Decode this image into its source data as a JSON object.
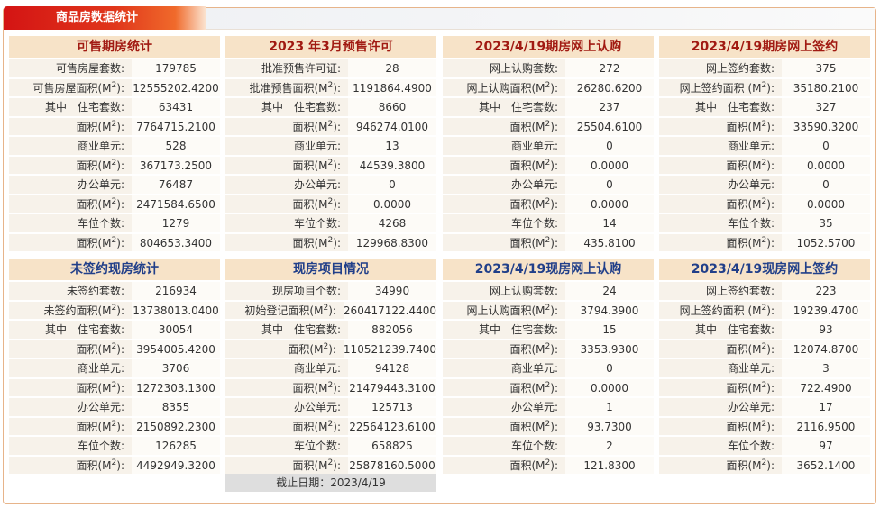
{
  "title": "商品房数据统计",
  "unit_sup": "2",
  "panels": [
    {
      "id": "p1",
      "title": "可售期房统计",
      "tone": "red",
      "rows": [
        {
          "label": "可售房屋套数:",
          "value": "179785"
        },
        {
          "label": "可售房屋面积(M",
          "sup": true,
          "value": "12555202.4200"
        },
        {
          "label": "其中　住宅套数:",
          "value": "63431"
        },
        {
          "label": "面积(M",
          "sup": true,
          "value": "7764715.2100"
        },
        {
          "label": "商业单元:",
          "value": "528"
        },
        {
          "label": "面积(M",
          "sup": true,
          "value": "367173.2500"
        },
        {
          "label": "办公单元:",
          "value": "76487"
        },
        {
          "label": "面积(M",
          "sup": true,
          "value": "2471584.6500"
        },
        {
          "label": "车位个数:",
          "value": "1279"
        },
        {
          "label": "面积(M",
          "sup": true,
          "value": "804653.3400"
        }
      ]
    },
    {
      "id": "p2",
      "title": "2023 年3月预售许可",
      "tone": "red",
      "rows": [
        {
          "label": "批准预售许可证:",
          "value": "28"
        },
        {
          "label": "批准预售面积(M",
          "sup": true,
          "value": "1191864.4900"
        },
        {
          "label": "其中　住宅套数:",
          "value": "8660"
        },
        {
          "label": "面积(M",
          "sup": true,
          "value": "946274.0100"
        },
        {
          "label": "商业单元:",
          "value": "13"
        },
        {
          "label": "面积(M",
          "sup": true,
          "value": "44539.3800"
        },
        {
          "label": "办公单元:",
          "value": "0"
        },
        {
          "label": "面积(M",
          "sup": true,
          "value": "0.0000"
        },
        {
          "label": "车位个数:",
          "value": "4268"
        },
        {
          "label": "面积(M",
          "sup": true,
          "value": "129968.8300"
        }
      ]
    },
    {
      "id": "p3",
      "title": "2023/4/19期房网上认购",
      "tone": "red",
      "rows": [
        {
          "label": "网上认购套数:",
          "value": "272"
        },
        {
          "label": "网上认购面积(M",
          "sup": true,
          "value": "26280.6200"
        },
        {
          "label": "其中　住宅套数:",
          "value": "237"
        },
        {
          "label": "面积(M",
          "sup": true,
          "value": "25504.6100"
        },
        {
          "label": "商业单元:",
          "value": "0"
        },
        {
          "label": "面积(M",
          "sup": true,
          "value": "0.0000"
        },
        {
          "label": "办公单元:",
          "value": "0"
        },
        {
          "label": "面积(M",
          "sup": true,
          "value": "0.0000"
        },
        {
          "label": "车位个数:",
          "value": "14"
        },
        {
          "label": "面积(M",
          "sup": true,
          "value": "435.8100"
        }
      ]
    },
    {
      "id": "p4",
      "title": "2023/4/19期房网上签约",
      "tone": "red",
      "rows": [
        {
          "label": "网上签约套数:",
          "value": "375"
        },
        {
          "label": "网上签约面积 (M",
          "sup": true,
          "value": "35180.2100"
        },
        {
          "label": "其中　住宅套数:",
          "value": "327"
        },
        {
          "label": "面积(M",
          "sup": true,
          "value": "33590.3200"
        },
        {
          "label": "商业单元:",
          "value": "0"
        },
        {
          "label": "面积(M",
          "sup": true,
          "value": "0.0000"
        },
        {
          "label": "办公单元:",
          "value": "0"
        },
        {
          "label": "面积(M",
          "sup": true,
          "value": "0.0000"
        },
        {
          "label": "车位个数:",
          "value": "35"
        },
        {
          "label": "面积(M",
          "sup": true,
          "value": "1052.5700"
        }
      ]
    },
    {
      "id": "p5",
      "title": "未签约现房统计",
      "tone": "blue",
      "rows": [
        {
          "label": "未签约套数:",
          "value": "216934"
        },
        {
          "label": "未签约面积(M",
          "sup": true,
          "value": "13738013.0400"
        },
        {
          "label": "其中　住宅套数:",
          "value": "30054"
        },
        {
          "label": "面积(M",
          "sup": true,
          "value": "3954005.4200"
        },
        {
          "label": "商业单元:",
          "value": "3706"
        },
        {
          "label": "面积(M",
          "sup": true,
          "value": "1272303.1300"
        },
        {
          "label": "办公单元:",
          "value": "8355"
        },
        {
          "label": "面积(M",
          "sup": true,
          "value": "2150892.2300"
        },
        {
          "label": "车位个数:",
          "value": "126285"
        },
        {
          "label": "面积(M",
          "sup": true,
          "value": "4492949.3200"
        }
      ]
    },
    {
      "id": "p6",
      "title": "现房项目情况",
      "tone": "blue",
      "rows": [
        {
          "label": "现房项目个数:",
          "value": "34990"
        },
        {
          "label": "初始登记面积(M",
          "sup": true,
          "value": "260417122.4400"
        },
        {
          "label": "其中　住宅套数:",
          "value": "882056"
        },
        {
          "label": "面积(M",
          "sup": true,
          "value": "110521239.7400"
        },
        {
          "label": "商业单元:",
          "value": "94128"
        },
        {
          "label": "面积(M",
          "sup": true,
          "value": "21479443.3100"
        },
        {
          "label": "办公单元:",
          "value": "125713"
        },
        {
          "label": "面积(M",
          "sup": true,
          "value": "22564123.6100"
        },
        {
          "label": "车位个数:",
          "value": "658825"
        },
        {
          "label": "面积(M",
          "sup": true,
          "value": "25878160.5000"
        }
      ],
      "note": "截止日期：2023/4/19"
    },
    {
      "id": "p7",
      "title": "2023/4/19现房网上认购",
      "tone": "blue",
      "rows": [
        {
          "label": "网上认购套数:",
          "value": "24"
        },
        {
          "label": "网上认购面积(M",
          "sup": true,
          "value": "3794.3900"
        },
        {
          "label": "其中　住宅套数:",
          "value": "15"
        },
        {
          "label": "面积(M",
          "sup": true,
          "value": "3353.9300"
        },
        {
          "label": "商业单元:",
          "value": "0"
        },
        {
          "label": "面积(M",
          "sup": true,
          "value": "0.0000"
        },
        {
          "label": "办公单元:",
          "value": "1"
        },
        {
          "label": "面积(M",
          "sup": true,
          "value": "93.7300"
        },
        {
          "label": "车位个数:",
          "value": "2"
        },
        {
          "label": "面积(M",
          "sup": true,
          "value": "121.8300"
        }
      ]
    },
    {
      "id": "p8",
      "title": "2023/4/19现房网上签约",
      "tone": "blue",
      "rows": [
        {
          "label": "网上签约套数:",
          "value": "223"
        },
        {
          "label": "网上签约面积 (M",
          "sup": true,
          "value": "19239.4700"
        },
        {
          "label": "其中　住宅套数:",
          "value": "93"
        },
        {
          "label": "面积(M",
          "sup": true,
          "value": "12074.8700"
        },
        {
          "label": "商业单元:",
          "value": "3"
        },
        {
          "label": "面积(M",
          "sup": true,
          "value": "722.4900"
        },
        {
          "label": "办公单元:",
          "value": "17"
        },
        {
          "label": "面积(M",
          "sup": true,
          "value": "2116.9500"
        },
        {
          "label": "车位个数:",
          "value": "97"
        },
        {
          "label": "面积(M",
          "sup": true,
          "value": "3652.1400"
        }
      ]
    }
  ]
}
